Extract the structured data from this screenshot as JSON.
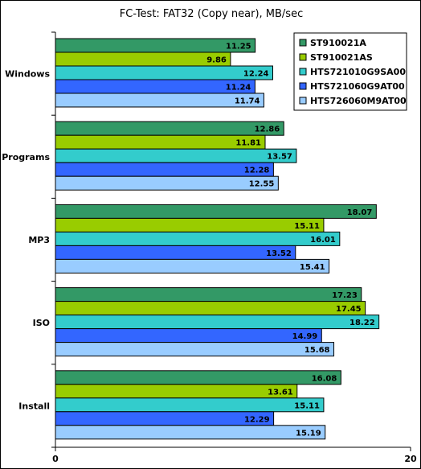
{
  "chart_data": {
    "type": "bar",
    "orientation": "horizontal",
    "title": "FC-Test: FAT32 (Copy near), MB/sec",
    "xlabel": "",
    "ylabel": "",
    "xlim": [
      0,
      20
    ],
    "x_ticks": [
      0,
      20
    ],
    "grid": false,
    "legend_position": "top-right",
    "categories": [
      "Windows",
      "Programs",
      "MP3",
      "ISO",
      "Install"
    ],
    "series": [
      {
        "name": "ST910021A",
        "color": "#339966",
        "values": [
          11.25,
          12.86,
          18.07,
          17.23,
          16.08
        ]
      },
      {
        "name": "ST910021AS",
        "color": "#99cc00",
        "values": [
          9.86,
          11.81,
          15.11,
          17.45,
          13.61
        ]
      },
      {
        "name": "HTS721010G9SA00",
        "color": "#33cccc",
        "values": [
          12.24,
          13.57,
          16.01,
          18.22,
          15.11
        ]
      },
      {
        "name": "HTS721060G9AT00",
        "color": "#3366ff",
        "values": [
          11.24,
          12.28,
          13.52,
          14.99,
          12.29
        ]
      },
      {
        "name": "HTS726060M9AT00",
        "color": "#99ccff",
        "values": [
          11.74,
          12.55,
          15.41,
          15.68,
          15.19
        ]
      }
    ]
  }
}
